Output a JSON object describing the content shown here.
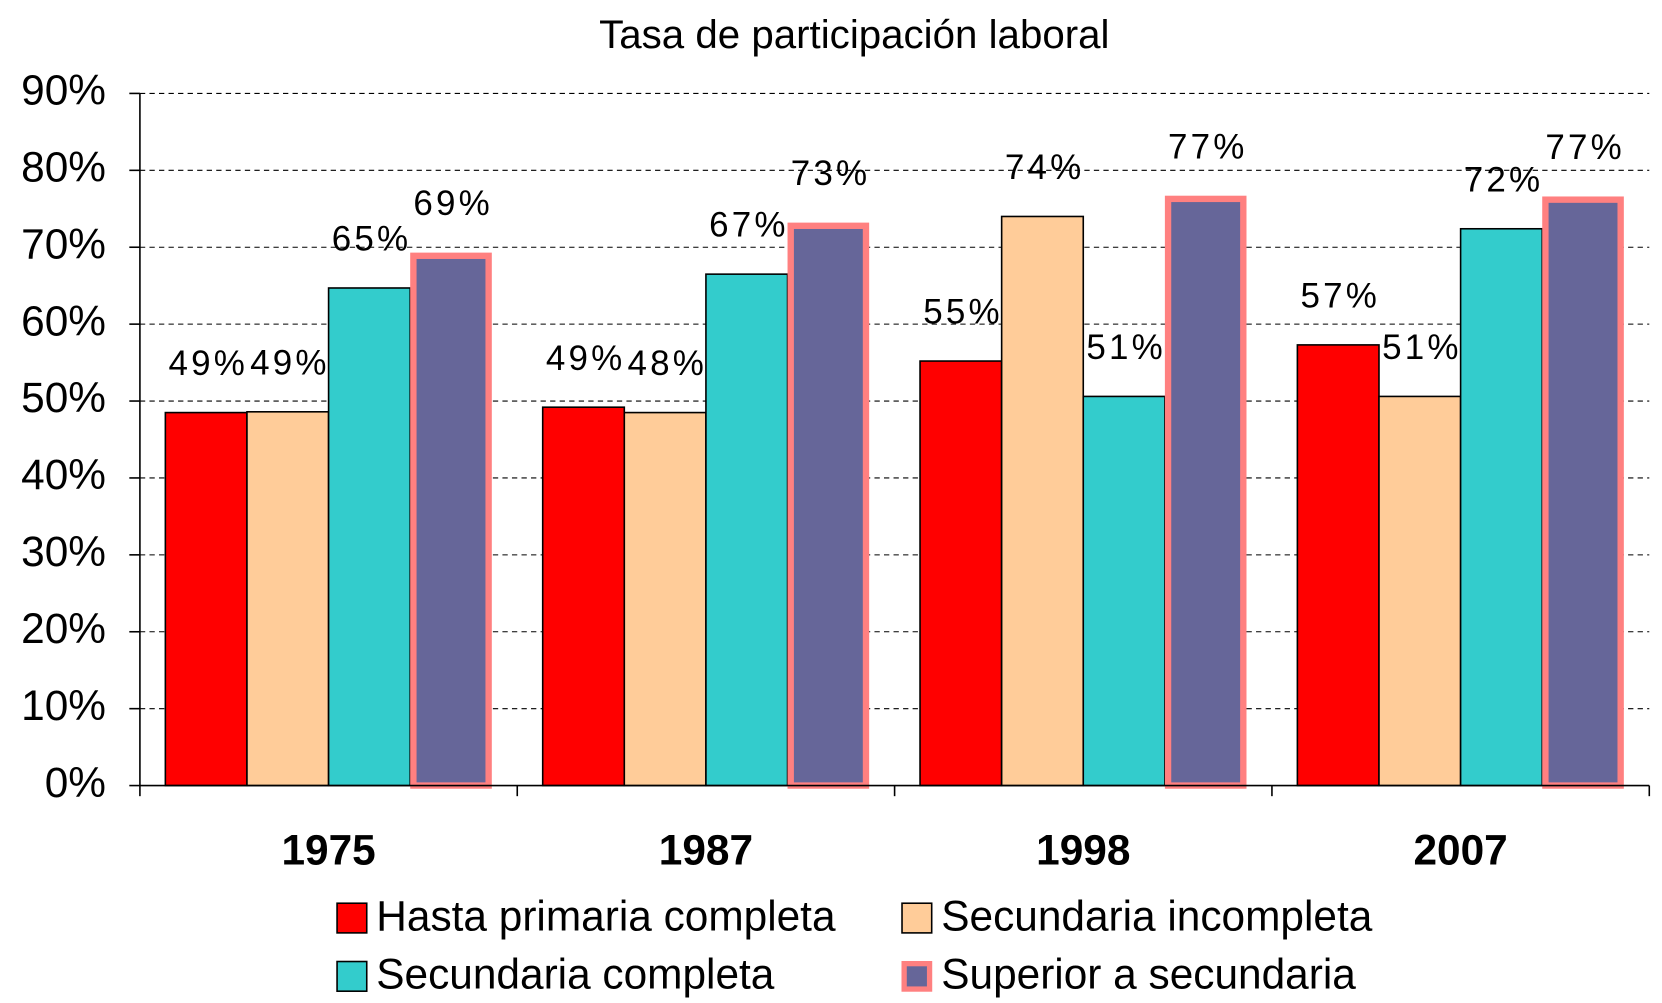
{
  "chart_data": {
    "type": "bar",
    "title": "Tasa de participación laboral",
    "categories": [
      "1975",
      "1987",
      "1998",
      "2007"
    ],
    "series": [
      {
        "name": "Hasta primaria completa",
        "color": "#ff0000",
        "edgecolor": "#000000",
        "values": [
          48.5,
          49.2,
          55.2,
          57.3
        ],
        "value_labels": [
          "49%",
          "49%",
          "55%",
          "57%"
        ]
      },
      {
        "name": "Secundaria incompleta",
        "color": "#ffcc99",
        "edgecolor": "#000000",
        "values": [
          48.6,
          48.5,
          74,
          50.6
        ],
        "value_labels": [
          "49%",
          "48%",
          "74%",
          "51%"
        ]
      },
      {
        "name": "Secundaria completa",
        "color": "#33cccc",
        "edgecolor": "#000000",
        "values": [
          64.7,
          66.5,
          50.6,
          72.4
        ],
        "value_labels": [
          "65%",
          "67%",
          "51%",
          "72%"
        ]
      },
      {
        "name": "Superior a secundaria",
        "color": "#666699",
        "edgecolor": "#ff8080",
        "values": [
          69.3,
          73.2,
          76.7,
          76.6
        ],
        "value_labels": [
          "69%",
          "73%",
          "77%",
          "77%"
        ]
      }
    ],
    "ylim": [
      0,
      90
    ],
    "yticks": [
      {
        "value": 0,
        "label": "0%"
      },
      {
        "value": 10,
        "label": "10%"
      },
      {
        "value": 20,
        "label": "20%"
      },
      {
        "value": 30,
        "label": "30%"
      },
      {
        "value": 40,
        "label": "40%"
      },
      {
        "value": 50,
        "label": "50%"
      },
      {
        "value": 60,
        "label": "60%"
      },
      {
        "value": 70,
        "label": "70%"
      },
      {
        "value": 80,
        "label": "80%"
      },
      {
        "value": 90,
        "label": "90%"
      }
    ],
    "grid": true,
    "legend": "bottom"
  }
}
